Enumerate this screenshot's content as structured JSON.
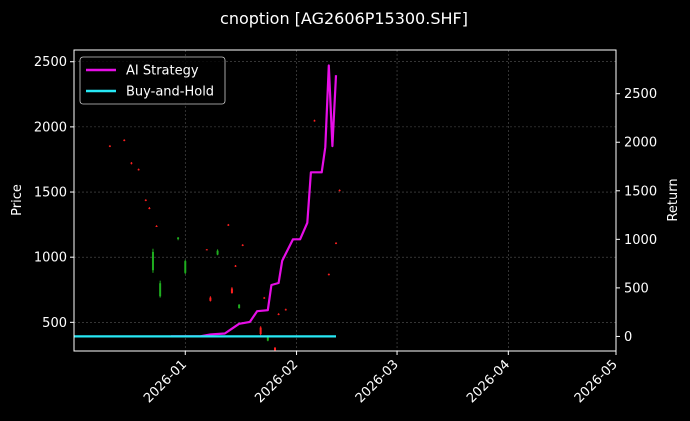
{
  "chart_data": {
    "type": "line",
    "title": "cnoption [AG2606P15300.SHF]",
    "ylabel_left": "Price",
    "ylabel_right": "Return",
    "grid": true,
    "legend_position": "top-left",
    "x_axis": {
      "type": "date",
      "range": [
        "2025-12-01",
        "2026-05-01"
      ],
      "ticks": [
        "2026-01",
        "2026-02",
        "2026-03",
        "2026-04",
        "2026-05"
      ]
    },
    "y_left": {
      "range": [
        280,
        2590
      ],
      "ticks": [
        500,
        1000,
        1500,
        2000,
        2500
      ]
    },
    "y_right": {
      "range": [
        -150,
        2950
      ],
      "ticks": [
        0,
        500,
        1000,
        1500,
        2000,
        2500
      ]
    },
    "colors": {
      "background": "#000000",
      "axes": "#ffffff",
      "grid": "#555555",
      "up_candle": "#1fae1f",
      "down_candle": "#ff2020",
      "ai_strategy": "#e60ee6",
      "buy_and_hold": "#27e8f5"
    },
    "series": [
      {
        "name": "AI Strategy",
        "axis": "right",
        "points": [
          [
            "2025-12-28",
            0
          ],
          [
            "2026-01-05",
            0
          ],
          [
            "2026-01-08",
            20
          ],
          [
            "2026-01-12",
            30
          ],
          [
            "2026-01-14",
            80
          ],
          [
            "2026-01-16",
            130
          ],
          [
            "2026-01-19",
            150
          ],
          [
            "2026-01-21",
            260
          ],
          [
            "2026-01-24",
            270
          ],
          [
            "2026-01-25",
            530
          ],
          [
            "2026-01-27",
            550
          ],
          [
            "2026-01-28",
            780
          ],
          [
            "2026-01-31",
            1000
          ],
          [
            "2026-02-02",
            1000
          ],
          [
            "2026-02-04",
            1170
          ],
          [
            "2026-02-05",
            1690
          ],
          [
            "2026-02-08",
            1690
          ],
          [
            "2026-02-09",
            1950
          ],
          [
            "2026-02-10",
            2790
          ],
          [
            "2026-02-11",
            1960
          ],
          [
            "2026-02-12",
            2690
          ]
        ]
      },
      {
        "name": "Buy-and-Hold",
        "axis": "right",
        "points": [
          [
            "2025-12-01",
            0
          ],
          [
            "2026-02-12",
            0
          ]
        ]
      }
    ],
    "candles": [
      {
        "date": "2025-12-11",
        "open": 1855,
        "high": 1860,
        "low": 1845,
        "close": 1848
      },
      {
        "date": "2025-12-15",
        "open": 1900,
        "high": 1905,
        "low": 1890,
        "close": 1895
      },
      {
        "date": "2025-12-17",
        "open": 1725,
        "high": 1730,
        "low": 1712,
        "close": 1718
      },
      {
        "date": "2025-12-19",
        "open": 1675,
        "high": 1680,
        "low": 1665,
        "close": 1670
      },
      {
        "date": "2025-12-21",
        "open": 1440,
        "high": 1445,
        "low": 1430,
        "close": 1435
      },
      {
        "date": "2025-12-22",
        "open": 1378,
        "high": 1385,
        "low": 1368,
        "close": 1372
      },
      {
        "date": "2025-12-23",
        "open": 900,
        "high": 1065,
        "low": 880,
        "close": 1040
      },
      {
        "date": "2025-12-24",
        "open": 1240,
        "high": 1245,
        "low": 1232,
        "close": 1236
      },
      {
        "date": "2025-12-25",
        "open": 700,
        "high": 820,
        "low": 690,
        "close": 800
      },
      {
        "date": "2025-12-30",
        "open": 1140,
        "high": 1155,
        "low": 1130,
        "close": 1150
      },
      {
        "date": "2026-01-01",
        "open": 880,
        "high": 980,
        "low": 870,
        "close": 970
      },
      {
        "date": "2026-01-07",
        "open": 1060,
        "high": 1062,
        "low": 1055,
        "close": 1058
      },
      {
        "date": "2026-01-08",
        "open": 690,
        "high": 700,
        "low": 660,
        "close": 665
      },
      {
        "date": "2026-01-10",
        "open": 1020,
        "high": 1060,
        "low": 1015,
        "close": 1050
      },
      {
        "date": "2026-01-13",
        "open": 1250,
        "high": 1255,
        "low": 1240,
        "close": 1245
      },
      {
        "date": "2026-01-14",
        "open": 760,
        "high": 770,
        "low": 720,
        "close": 725
      },
      {
        "date": "2026-01-15",
        "open": 935,
        "high": 940,
        "low": 925,
        "close": 930
      },
      {
        "date": "2026-01-16",
        "open": 610,
        "high": 640,
        "low": 605,
        "close": 635
      },
      {
        "date": "2026-01-17",
        "open": 1095,
        "high": 1100,
        "low": 1085,
        "close": 1090
      },
      {
        "date": "2026-01-22",
        "open": 460,
        "high": 470,
        "low": 400,
        "close": 410
      },
      {
        "date": "2026-01-23",
        "open": 690,
        "high": 695,
        "low": 680,
        "close": 685
      },
      {
        "date": "2026-01-24",
        "open": 360,
        "high": 400,
        "low": 355,
        "close": 395
      },
      {
        "date": "2026-01-26",
        "open": 305,
        "high": 310,
        "low": 282,
        "close": 285
      },
      {
        "date": "2026-01-27",
        "open": 565,
        "high": 570,
        "low": 555,
        "close": 560
      },
      {
        "date": "2026-01-29",
        "open": 600,
        "high": 605,
        "low": 590,
        "close": 595
      },
      {
        "date": "2026-02-06",
        "open": 2050,
        "high": 2055,
        "low": 2040,
        "close": 2045
      },
      {
        "date": "2026-02-10",
        "open": 870,
        "high": 875,
        "low": 860,
        "close": 865
      },
      {
        "date": "2026-02-12",
        "open": 1110,
        "high": 1115,
        "low": 1100,
        "close": 1105
      },
      {
        "date": "2026-02-13",
        "open": 1515,
        "high": 1520,
        "low": 1505,
        "close": 1510
      }
    ]
  }
}
